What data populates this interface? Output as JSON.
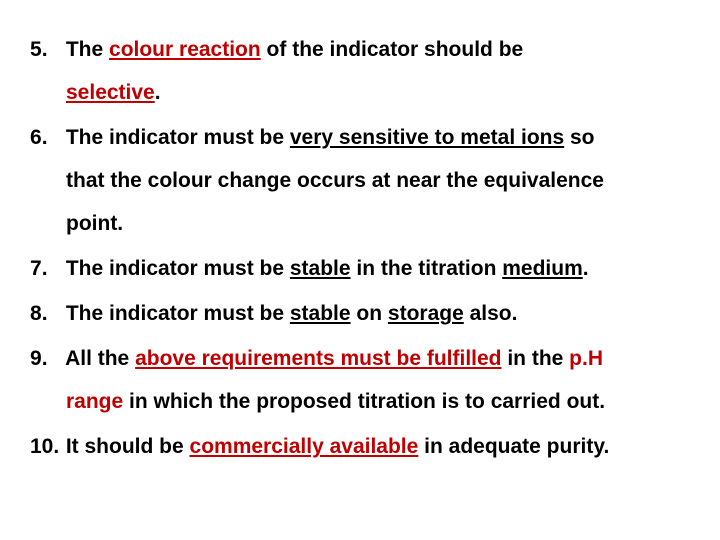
{
  "colors": {
    "text": "#000000",
    "accent": "#c00000",
    "background": "#ffffff"
  },
  "typography": {
    "font_family": "Arial",
    "font_size_pt": 16,
    "font_weight": "bold",
    "line_height": 2.05
  },
  "list": {
    "start_number": 5,
    "items": [
      {
        "t1": "The ",
        "t2": "colour reaction",
        "t3": " of the indicator should be",
        "t4": "selective",
        "t5": "."
      },
      {
        "t1": "The indicator must be ",
        "t2": "very sensitive to metal ions",
        "t3": " so",
        "t4": "that the colour change occurs at near the equivalence",
        "t5": "point."
      },
      {
        "t1": "The indicator must be ",
        "t2": "stable",
        "t3": " in the titration ",
        "t4": "medium",
        "t5": "."
      },
      {
        "t1": "The indicator must be ",
        "t2": "stable",
        "t3": " on ",
        "t4": "storage",
        "t5": " also."
      },
      {
        "t1": " All the ",
        "t2": "above requirements must be fulfilled",
        "t3": " in the ",
        "t4": "p.H",
        "t5": "range",
        "t6": " in which the proposed titration is to carried out."
      },
      {
        "t1": " It should be ",
        "t2": "commercially available",
        "t3": " in adequate purity."
      }
    ]
  }
}
